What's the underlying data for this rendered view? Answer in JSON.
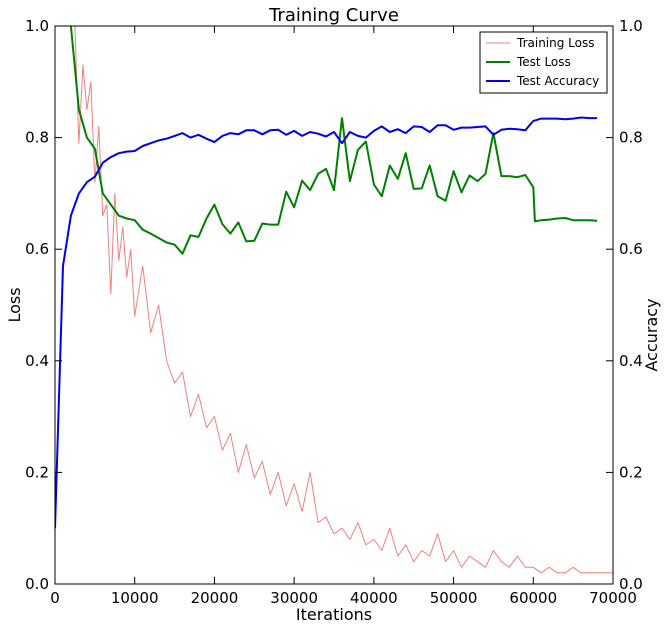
{
  "chart_data": {
    "type": "line",
    "title": "Training Curve",
    "xlabel": "Iterations",
    "ylabel": "Loss",
    "y2label": "Accuracy",
    "xlim": [
      0,
      70000
    ],
    "ylim": [
      0,
      1.0
    ],
    "y2lim": [
      0,
      1.0
    ],
    "x_ticks": [
      "0",
      "10000",
      "20000",
      "30000",
      "40000",
      "50000",
      "60000",
      "70000"
    ],
    "y_ticks": [
      "0.0",
      "0.2",
      "0.4",
      "0.6",
      "0.8",
      "1.0"
    ],
    "y2_ticks": [
      "0.0",
      "0.2",
      "0.4",
      "0.6",
      "0.8",
      "1.0"
    ],
    "grid": false,
    "legend_position": "top-right",
    "series": [
      {
        "name": "Training Loss",
        "axis": "left",
        "color": "#f08080",
        "x": [
          2000,
          2500,
          3000,
          3500,
          4000,
          4500,
          5000,
          5500,
          6000,
          6500,
          7000,
          7500,
          8000,
          8500,
          9000,
          9500,
          10000,
          11000,
          12000,
          13000,
          14000,
          15000,
          16000,
          17000,
          18000,
          19000,
          20000,
          21000,
          22000,
          23000,
          24000,
          25000,
          26000,
          27000,
          28000,
          29000,
          30000,
          31000,
          32000,
          33000,
          34000,
          35000,
          36000,
          37000,
          38000,
          39000,
          40000,
          41000,
          42000,
          43000,
          44000,
          45000,
          46000,
          47000,
          48000,
          49000,
          50000,
          51000,
          52000,
          53000,
          54000,
          55000,
          56000,
          57000,
          58000,
          59000,
          60000,
          61000,
          62000,
          63000,
          64000,
          65000,
          66000,
          67000,
          68000,
          69000,
          70000
        ],
        "values": [
          1.0,
          1.0,
          0.79,
          0.93,
          0.85,
          0.9,
          0.72,
          0.82,
          0.66,
          0.68,
          0.52,
          0.7,
          0.58,
          0.64,
          0.55,
          0.6,
          0.48,
          0.57,
          0.45,
          0.5,
          0.4,
          0.36,
          0.38,
          0.3,
          0.34,
          0.28,
          0.3,
          0.24,
          0.27,
          0.2,
          0.25,
          0.19,
          0.22,
          0.16,
          0.2,
          0.14,
          0.18,
          0.13,
          0.2,
          0.11,
          0.12,
          0.09,
          0.1,
          0.08,
          0.11,
          0.07,
          0.08,
          0.06,
          0.1,
          0.05,
          0.07,
          0.04,
          0.06,
          0.05,
          0.09,
          0.04,
          0.06,
          0.03,
          0.05,
          0.04,
          0.03,
          0.06,
          0.04,
          0.03,
          0.05,
          0.03,
          0.03,
          0.02,
          0.03,
          0.02,
          0.02,
          0.03,
          0.02,
          0.02,
          0.02,
          0.02,
          0.02
        ]
      },
      {
        "name": "Test Loss",
        "axis": "left",
        "color": "#008000",
        "x": [
          2000,
          3000,
          4000,
          5000,
          6000,
          7000,
          8000,
          9000,
          10000,
          11000,
          12000,
          13000,
          14000,
          15000,
          16000,
          17000,
          18000,
          19000,
          20000,
          21000,
          22000,
          23000,
          24000,
          25000,
          26000,
          27000,
          28000,
          29000,
          30000,
          31000,
          32000,
          33000,
          34000,
          35000,
          36000,
          37000,
          38000,
          39000,
          40000,
          41000,
          42000,
          43000,
          44000,
          45000,
          46000,
          47000,
          48000,
          49000,
          50000,
          51000,
          52000,
          53000,
          54000,
          55000,
          56000,
          57000,
          58000,
          59000,
          60000,
          60200,
          61000,
          62000,
          63000,
          64000,
          65000,
          66000,
          67000,
          68000
        ],
        "values": [
          1.0,
          0.85,
          0.8,
          0.78,
          0.7,
          0.68,
          0.66,
          0.655,
          0.652,
          0.635,
          0.628,
          0.62,
          0.612,
          0.608,
          0.592,
          0.625,
          0.622,
          0.655,
          0.68,
          0.645,
          0.628,
          0.648,
          0.614,
          0.615,
          0.646,
          0.644,
          0.644,
          0.703,
          0.675,
          0.723,
          0.706,
          0.735,
          0.744,
          0.706,
          0.835,
          0.722,
          0.778,
          0.793,
          0.716,
          0.695,
          0.75,
          0.726,
          0.772,
          0.708,
          0.709,
          0.75,
          0.695,
          0.687,
          0.74,
          0.702,
          0.732,
          0.722,
          0.735,
          0.808,
          0.731,
          0.731,
          0.729,
          0.733,
          0.711,
          0.65,
          0.652,
          0.653,
          0.655,
          0.656,
          0.652,
          0.652,
          0.652,
          0.651
        ]
      },
      {
        "name": "Test Accuracy",
        "axis": "right",
        "color": "#0000ee",
        "x": [
          0,
          1000,
          2000,
          3000,
          4000,
          5000,
          6000,
          7000,
          8000,
          9000,
          10000,
          11000,
          12000,
          13000,
          14000,
          15000,
          16000,
          17000,
          18000,
          19000,
          20000,
          21000,
          22000,
          23000,
          24000,
          25000,
          26000,
          27000,
          28000,
          29000,
          30000,
          31000,
          32000,
          33000,
          34000,
          35000,
          36000,
          37000,
          38000,
          39000,
          40000,
          41000,
          42000,
          43000,
          44000,
          45000,
          46000,
          47000,
          48000,
          49000,
          50000,
          51000,
          52000,
          53000,
          54000,
          55000,
          56000,
          57000,
          58000,
          59000,
          60000,
          61000,
          62000,
          63000,
          64000,
          65000,
          66000,
          67000,
          68000
        ],
        "values": [
          0.1,
          0.57,
          0.66,
          0.7,
          0.72,
          0.73,
          0.755,
          0.765,
          0.772,
          0.775,
          0.776,
          0.785,
          0.79,
          0.795,
          0.798,
          0.803,
          0.808,
          0.8,
          0.805,
          0.798,
          0.792,
          0.803,
          0.808,
          0.806,
          0.813,
          0.813,
          0.806,
          0.813,
          0.814,
          0.805,
          0.812,
          0.803,
          0.81,
          0.807,
          0.802,
          0.81,
          0.79,
          0.81,
          0.803,
          0.8,
          0.812,
          0.82,
          0.81,
          0.815,
          0.808,
          0.82,
          0.819,
          0.81,
          0.822,
          0.822,
          0.814,
          0.818,
          0.818,
          0.819,
          0.82,
          0.805,
          0.814,
          0.816,
          0.815,
          0.813,
          0.83,
          0.834,
          0.834,
          0.834,
          0.833,
          0.834,
          0.836,
          0.835,
          0.835
        ]
      }
    ]
  }
}
